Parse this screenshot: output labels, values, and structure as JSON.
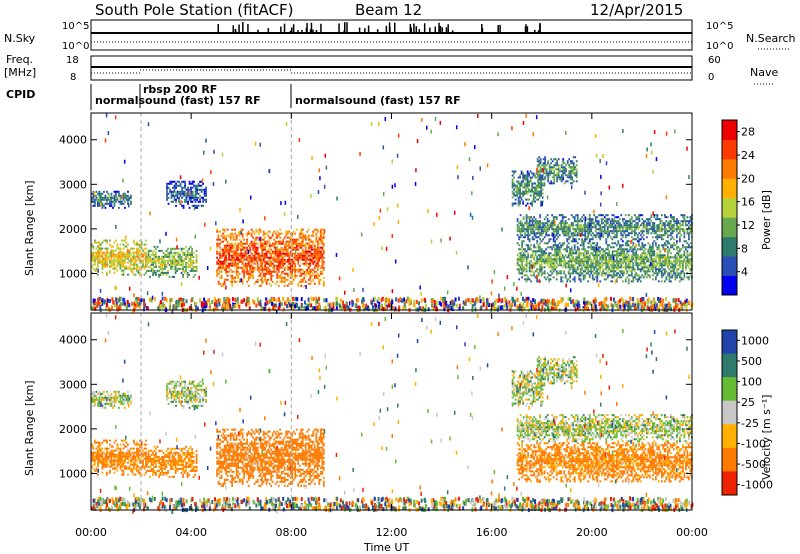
{
  "header": {
    "station": "South Pole Station (fitACF)",
    "beam": "Beam 12",
    "date": "12/Apr/2015"
  },
  "nsky": {
    "label": "N.Sky",
    "tick_top": "10^5",
    "tick_bottom": "10^0",
    "right_label": "N.Search",
    "right_tick_top": "10^5",
    "right_tick_bottom": "10^0"
  },
  "freq": {
    "label_line1": "Freq.",
    "label_line2": "[MHz]",
    "tick_top": "18",
    "tick_bottom": "8",
    "right_label": "Nave",
    "right_tick_top": "60",
    "right_tick_bottom": "0"
  },
  "cpid": {
    "label": "CPID",
    "segments": [
      {
        "text": "normalsound (fast) 157 RF",
        "start_hour": 0
      },
      {
        "text": "rbsp 200 RF",
        "start_hour": 2
      },
      {
        "text": "normalsound (fast) 157 RF",
        "start_hour": 8
      }
    ]
  },
  "power_panel": {
    "ylabel": "Slant Range [km]",
    "yticks": [
      "1000",
      "2000",
      "3000",
      "4000"
    ],
    "colorbar_label": "Power [dB]",
    "colorbar_ticks": [
      "4",
      "8",
      "12",
      "16",
      "20",
      "24",
      "28"
    ],
    "colors": [
      "#0000ee",
      "#2a4db8",
      "#2e7b6e",
      "#6aa84f",
      "#b6d23a",
      "#ffb000",
      "#ff7a00",
      "#ff3a00",
      "#ee0000"
    ]
  },
  "velocity_panel": {
    "ylabel": "Slant Range [km]",
    "yticks": [
      "1000",
      "2000",
      "3000",
      "4000"
    ],
    "colorbar_label": "Velocity [m s⁻¹]",
    "colorbar_ticks": [
      "1000",
      "500",
      "100",
      "25",
      "-25",
      "-100",
      "-500",
      "-1000"
    ],
    "colors": [
      "#2244aa",
      "#2e7b6e",
      "#66bb33",
      "#c8c8c8",
      "#ffb000",
      "#ff7a00",
      "#ee2200"
    ]
  },
  "xaxis": {
    "label": "Time UT",
    "ticks": [
      "00:00",
      "04:00",
      "08:00",
      "12:00",
      "16:00",
      "20:00",
      "00:00"
    ]
  },
  "chart_data": {
    "type": "heatmap",
    "title": "South Pole Station (fitACF) Beam 12 12/Apr/2015",
    "xlabel": "Time UT",
    "ylabel": "Slant Range [km]",
    "xlim_hours": [
      0,
      24
    ],
    "ylim_km": [
      180,
      4600
    ],
    "power_colorbar": {
      "label": "Power [dB]",
      "range": [
        0,
        30
      ],
      "ticks": [
        4,
        8,
        12,
        16,
        20,
        24,
        28
      ]
    },
    "velocity_colorbar": {
      "label": "Velocity [m s-1]",
      "ticks": [
        1000,
        500,
        100,
        25,
        -25,
        -100,
        -500,
        -1000
      ]
    },
    "mode_changes_hours": [
      2.0,
      8.0
    ],
    "echo_regions": [
      {
        "t0": 0.0,
        "t1": 2.2,
        "r0": 950,
        "r1": 1750,
        "power_db": 18,
        "velocity": -150
      },
      {
        "t0": 2.2,
        "t1": 4.2,
        "r0": 900,
        "r1": 1600,
        "power_db": 14,
        "velocity": -150
      },
      {
        "t0": 5.0,
        "t1": 9.3,
        "r0": 700,
        "r1": 2000,
        "power_db": 26,
        "velocity": -200
      },
      {
        "t0": 0.0,
        "t1": 1.6,
        "r0": 2450,
        "r1": 2850,
        "power_db": 8,
        "velocity": 25
      },
      {
        "t0": 3.0,
        "t1": 4.6,
        "r0": 2450,
        "r1": 3050,
        "power_db": 6,
        "velocity": 25
      },
      {
        "t0": 16.8,
        "t1": 18.0,
        "r0": 2500,
        "r1": 3300,
        "power_db": 10,
        "velocity": 25
      },
      {
        "t0": 17.8,
        "t1": 19.4,
        "r0": 3000,
        "r1": 3600,
        "power_db": 10,
        "velocity": 25
      },
      {
        "t0": 17.0,
        "t1": 24.0,
        "r0": 1700,
        "r1": 2300,
        "power_db": 10,
        "velocity": 25
      },
      {
        "t0": 17.0,
        "t1": 24.0,
        "r0": 800,
        "r1": 1700,
        "power_db": 12,
        "velocity": -150
      }
    ]
  }
}
